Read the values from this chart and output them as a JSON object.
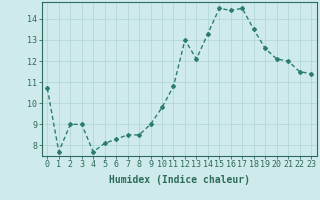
{
  "x": [
    0,
    1,
    2,
    3,
    4,
    5,
    6,
    7,
    8,
    9,
    10,
    11,
    12,
    13,
    14,
    15,
    16,
    17,
    18,
    19,
    20,
    21,
    22,
    23
  ],
  "y": [
    10.7,
    7.7,
    9.0,
    9.0,
    7.7,
    8.1,
    8.3,
    8.5,
    8.5,
    9.0,
    9.8,
    10.8,
    13.0,
    12.1,
    13.3,
    14.5,
    14.4,
    14.5,
    13.5,
    12.6,
    12.1,
    12.0,
    11.5,
    11.4
  ],
  "line_color": "#2d7d6e",
  "marker": "D",
  "marker_size": 2.0,
  "line_width": 1.0,
  "bg_color": "#ceeaea",
  "grid_color": "#afd4d4",
  "xlabel": "Humidex (Indice chaleur)",
  "ylim": [
    7.5,
    14.8
  ],
  "xlim": [
    -0.5,
    23.5
  ],
  "yticks": [
    8,
    9,
    10,
    11,
    12,
    13,
    14
  ],
  "xticks": [
    0,
    1,
    2,
    3,
    4,
    5,
    6,
    7,
    8,
    9,
    10,
    11,
    12,
    13,
    14,
    15,
    16,
    17,
    18,
    19,
    20,
    21,
    22,
    23
  ],
  "xlabel_fontsize": 7,
  "tick_fontsize": 6,
  "tick_color": "#2d6b5e",
  "axis_color": "#2d6b5e"
}
